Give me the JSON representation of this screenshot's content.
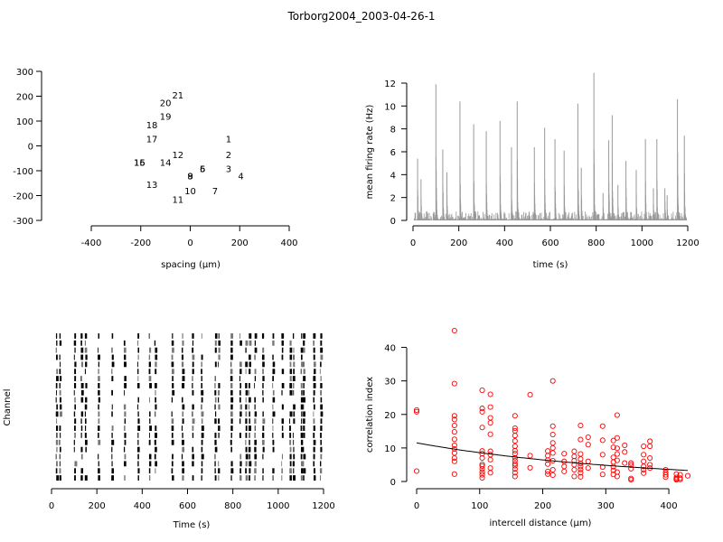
{
  "title": "Torborg2004_2003-04-26-1",
  "colors": {
    "rate": "#999999",
    "points": "#ff0000",
    "fit": "#000000",
    "raster": "#000000"
  },
  "chart_data": [
    {
      "type": "scatter",
      "name": "electrode-layout",
      "xlabel": "spacing (µm)",
      "ylabel": "",
      "xlim": [
        -400,
        400
      ],
      "ylim": [
        -300,
        300
      ],
      "xticks": [
        "-400",
        "-200",
        "0",
        "200",
        "400"
      ],
      "yticks": [
        "300",
        "200",
        "100",
        "0",
        "-100",
        "-200",
        "-300"
      ],
      "electrodes": [
        {
          "label": "1",
          "x": 155,
          "y": 30
        },
        {
          "label": "2",
          "x": 155,
          "y": -35
        },
        {
          "label": "3",
          "x": 155,
          "y": -90
        },
        {
          "label": "4",
          "x": 205,
          "y": -120
        },
        {
          "label": "5",
          "x": 50,
          "y": -90
        },
        {
          "label": "6",
          "x": 50,
          "y": -90
        },
        {
          "label": "7",
          "x": 100,
          "y": -180
        },
        {
          "label": "8",
          "x": 0,
          "y": -120
        },
        {
          "label": "9",
          "x": 0,
          "y": -120
        },
        {
          "label": "10",
          "x": 0,
          "y": -180
        },
        {
          "label": "11",
          "x": -50,
          "y": -215
        },
        {
          "label": "12",
          "x": -50,
          "y": -35
        },
        {
          "label": "13",
          "x": -155,
          "y": -155
        },
        {
          "label": "14",
          "x": -100,
          "y": -65
        },
        {
          "label": "15",
          "x": -205,
          "y": -65
        },
        {
          "label": "16",
          "x": -205,
          "y": -65
        },
        {
          "label": "17",
          "x": -155,
          "y": 30
        },
        {
          "label": "18",
          "x": -155,
          "y": 85
        },
        {
          "label": "19",
          "x": -100,
          "y": 120
        },
        {
          "label": "20",
          "x": -100,
          "y": 175
        },
        {
          "label": "21",
          "x": -50,
          "y": 205
        }
      ]
    },
    {
      "type": "bar",
      "name": "firing-rate",
      "xlabel": "time (s)",
      "ylabel": "mean firing rate (Hz)",
      "xlim": [
        0,
        1200
      ],
      "ylim": [
        0,
        12
      ],
      "xticks": [
        "0",
        "200",
        "400",
        "600",
        "800",
        "1000",
        "1200"
      ],
      "yticks": [
        "0",
        "2",
        "4",
        "6",
        "8",
        "10",
        "12"
      ],
      "bursts": [
        {
          "t": 20,
          "peak": 5.4
        },
        {
          "t": 35,
          "peak": 3.6
        },
        {
          "t": 100,
          "peak": 11.9
        },
        {
          "t": 130,
          "peak": 6.2
        },
        {
          "t": 148,
          "peak": 4.2
        },
        {
          "t": 205,
          "peak": 10.4
        },
        {
          "t": 265,
          "peak": 8.4
        },
        {
          "t": 320,
          "peak": 7.8
        },
        {
          "t": 380,
          "peak": 8.7
        },
        {
          "t": 430,
          "peak": 6.4
        },
        {
          "t": 455,
          "peak": 10.4
        },
        {
          "t": 530,
          "peak": 6.4
        },
        {
          "t": 575,
          "peak": 8.1
        },
        {
          "t": 620,
          "peak": 7.1
        },
        {
          "t": 660,
          "peak": 6.1
        },
        {
          "t": 720,
          "peak": 10.2
        },
        {
          "t": 735,
          "peak": 4.6
        },
        {
          "t": 790,
          "peak": 12.9
        },
        {
          "t": 830,
          "peak": 2.4
        },
        {
          "t": 855,
          "peak": 7.0
        },
        {
          "t": 870,
          "peak": 9.2
        },
        {
          "t": 895,
          "peak": 3.1
        },
        {
          "t": 930,
          "peak": 5.2
        },
        {
          "t": 975,
          "peak": 4.4
        },
        {
          "t": 1015,
          "peak": 7.1
        },
        {
          "t": 1050,
          "peak": 2.8
        },
        {
          "t": 1065,
          "peak": 7.1
        },
        {
          "t": 1100,
          "peak": 2.8
        },
        {
          "t": 1110,
          "peak": 2.2
        },
        {
          "t": 1155,
          "peak": 10.6
        },
        {
          "t": 1185,
          "peak": 7.4
        }
      ]
    },
    {
      "type": "raster",
      "name": "spike-raster",
      "xlabel": "Time (s)",
      "ylabel": "Channel",
      "xlim": [
        0,
        1200
      ],
      "xticks": [
        "0",
        "200",
        "400",
        "600",
        "800",
        "1000",
        "1200"
      ],
      "channels": 21,
      "burst_times": [
        20,
        35,
        100,
        130,
        148,
        205,
        265,
        320,
        380,
        430,
        455,
        530,
        575,
        620,
        660,
        720,
        735,
        790,
        830,
        855,
        870,
        895,
        930,
        975,
        1015,
        1050,
        1065,
        1100,
        1110,
        1155,
        1185
      ]
    },
    {
      "type": "scatter",
      "name": "correlation-index",
      "xlabel": "intercell distance (µm)",
      "ylabel": "correlation index",
      "xlim": [
        0,
        430
      ],
      "ylim": [
        0,
        45
      ],
      "xticks": [
        "0",
        "100",
        "200",
        "300",
        "400"
      ],
      "yticks": [
        "0",
        "10",
        "20",
        "30",
        "40"
      ],
      "fit": {
        "a": 11.5,
        "b": -0.0029,
        "x": [
          0,
          430
        ]
      },
      "points": [
        [
          0,
          21.3
        ],
        [
          0,
          20.8
        ],
        [
          0,
          3.1
        ],
        [
          60,
          45.0
        ],
        [
          60,
          29.2
        ],
        [
          60,
          19.6
        ],
        [
          60,
          18.5
        ],
        [
          60,
          16.7
        ],
        [
          60,
          14.8
        ],
        [
          60,
          12.6
        ],
        [
          60,
          10.8
        ],
        [
          60,
          9.7
        ],
        [
          60,
          8.5
        ],
        [
          60,
          7.0
        ],
        [
          60,
          6.0
        ],
        [
          60,
          2.2
        ],
        [
          104,
          27.2
        ],
        [
          104,
          21.8
        ],
        [
          104,
          20.8
        ],
        [
          104,
          16.1
        ],
        [
          104,
          9.1
        ],
        [
          104,
          8.3
        ],
        [
          104,
          7.0
        ],
        [
          104,
          5.1
        ],
        [
          104,
          4.6
        ],
        [
          104,
          3.7
        ],
        [
          104,
          2.8
        ],
        [
          104,
          2.0
        ],
        [
          104,
          1.1
        ],
        [
          117,
          26.0
        ],
        [
          117,
          22.2
        ],
        [
          117,
          19.0
        ],
        [
          117,
          17.5
        ],
        [
          117,
          14.1
        ],
        [
          117,
          9.0
        ],
        [
          117,
          8.0
        ],
        [
          117,
          6.5
        ],
        [
          117,
          4.0
        ],
        [
          117,
          2.6
        ],
        [
          156,
          19.6
        ],
        [
          156,
          15.9
        ],
        [
          156,
          15.1
        ],
        [
          156,
          13.7
        ],
        [
          156,
          12.1
        ],
        [
          156,
          10.5
        ],
        [
          156,
          9.2
        ],
        [
          156,
          8.3
        ],
        [
          156,
          7.1
        ],
        [
          156,
          6.2
        ],
        [
          156,
          5.3
        ],
        [
          156,
          4.7
        ],
        [
          156,
          3.7
        ],
        [
          156,
          2.6
        ],
        [
          156,
          1.5
        ],
        [
          180,
          25.9
        ],
        [
          180,
          7.7
        ],
        [
          180,
          4.1
        ],
        [
          208,
          9.1
        ],
        [
          208,
          7.7
        ],
        [
          208,
          6.4
        ],
        [
          208,
          5.2
        ],
        [
          208,
          3.0
        ],
        [
          208,
          2.2
        ],
        [
          216,
          30.0
        ],
        [
          216,
          16.5
        ],
        [
          216,
          14.0
        ],
        [
          216,
          11.5
        ],
        [
          216,
          10.0
        ],
        [
          216,
          8.5
        ],
        [
          216,
          6.2
        ],
        [
          216,
          3.5
        ],
        [
          216,
          1.9
        ],
        [
          234,
          8.3
        ],
        [
          234,
          6.0
        ],
        [
          234,
          4.5
        ],
        [
          234,
          3.0
        ],
        [
          250,
          9.0
        ],
        [
          250,
          7.5
        ],
        [
          250,
          6.2
        ],
        [
          250,
          5.0
        ],
        [
          250,
          3.5
        ],
        [
          250,
          1.5
        ],
        [
          260,
          16.7
        ],
        [
          260,
          12.5
        ],
        [
          260,
          8.2
        ],
        [
          260,
          6.7
        ],
        [
          260,
          5.4
        ],
        [
          260,
          4.5
        ],
        [
          260,
          3.6
        ],
        [
          260,
          2.6
        ],
        [
          260,
          1.4
        ],
        [
          272,
          13.2
        ],
        [
          272,
          11.0
        ],
        [
          272,
          6.0
        ],
        [
          272,
          4.0
        ],
        [
          295,
          16.5
        ],
        [
          295,
          12.3
        ],
        [
          295,
          8.0
        ],
        [
          295,
          4.3
        ],
        [
          295,
          2.1
        ],
        [
          312,
          12.2
        ],
        [
          312,
          10.2
        ],
        [
          312,
          7.2
        ],
        [
          312,
          5.8
        ],
        [
          312,
          4.4
        ],
        [
          312,
          3.3
        ],
        [
          312,
          2.1
        ],
        [
          318,
          19.8
        ],
        [
          318,
          13.0
        ],
        [
          318,
          9.9
        ],
        [
          318,
          8.2
        ],
        [
          318,
          6.3
        ],
        [
          318,
          2.8
        ],
        [
          318,
          1.5
        ],
        [
          330,
          10.8
        ],
        [
          330,
          8.8
        ],
        [
          330,
          5.5
        ],
        [
          340,
          5.5
        ],
        [
          340,
          4.9
        ],
        [
          340,
          3.8
        ],
        [
          340,
          0.9
        ],
        [
          340,
          0.5
        ],
        [
          360,
          10.5
        ],
        [
          360,
          8.0
        ],
        [
          360,
          6.0
        ],
        [
          360,
          4.5
        ],
        [
          360,
          3.5
        ],
        [
          360,
          2.5
        ],
        [
          370,
          12.0
        ],
        [
          370,
          10.5
        ],
        [
          370,
          7.0
        ],
        [
          370,
          5.0
        ],
        [
          370,
          4.0
        ],
        [
          395,
          3.5
        ],
        [
          395,
          2.7
        ],
        [
          395,
          2.0
        ],
        [
          395,
          1.3
        ],
        [
          412,
          2.2
        ],
        [
          412,
          1.2
        ],
        [
          412,
          0.8
        ],
        [
          412,
          0.5
        ],
        [
          418,
          2.0
        ],
        [
          418,
          1.0
        ],
        [
          418,
          0.6
        ],
        [
          430,
          1.7
        ]
      ]
    }
  ]
}
